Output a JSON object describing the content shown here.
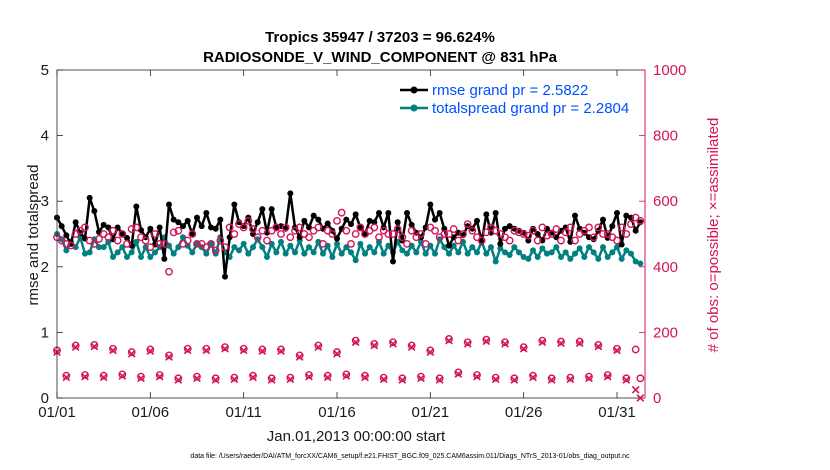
{
  "chart_data": {
    "type": "line",
    "title_line1": "Tropics 35947 / 37203 = 96.624%",
    "title_line2": "RADIOSONDE_V_WIND_COMPONENT @ 831 hPa",
    "xlabel": "Jan.01,2013 00:00:00 start",
    "ylabel_left": "rmse and totalspread",
    "ylabel_right": "# of obs: o=possible; ×=assimilated",
    "xlim": [
      0,
      31.5
    ],
    "ylim_left": [
      0,
      5
    ],
    "ylim_right": [
      0,
      1000
    ],
    "x_ticks": [
      0,
      5,
      10,
      15,
      20,
      25,
      30
    ],
    "x_tick_labels": [
      "01/01",
      "01/06",
      "01/11",
      "01/16",
      "01/21",
      "01/26",
      "01/31"
    ],
    "y_left_ticks": [
      0,
      1,
      2,
      3,
      4,
      5
    ],
    "y_left_tick_labels": [
      "0",
      "1",
      "2",
      "3",
      "4",
      "5"
    ],
    "y_right_ticks": [
      0,
      200,
      400,
      600,
      800,
      1000
    ],
    "y_right_tick_labels": [
      "0",
      "200",
      "400",
      "600",
      "800",
      "1000"
    ],
    "footer": "data file: /Users/raeder/DAI/ATM_forcXX/CAM6_setup/f.e21.FHIST_BGC.f09_025.CAM6assim.011/Diags_NTrS_2013-01/obs_diag_output.nc",
    "legend": {
      "placement": "top-right",
      "entries": [
        "rmse grand pr = 2.5822",
        "totalspread grand pr = 2.2804"
      ]
    },
    "colors": {
      "rmse": "#000000",
      "totalspread": "#008080",
      "obs": "#d4145a",
      "legend_text": "#0050ff"
    },
    "series": [
      {
        "name": "rmse",
        "axis": "left",
        "x": [
          0.0,
          0.25,
          0.5,
          0.75,
          1.0,
          1.25,
          1.5,
          1.75,
          2.0,
          2.25,
          2.5,
          2.75,
          3.0,
          3.25,
          3.5,
          3.75,
          4.0,
          4.25,
          4.5,
          4.75,
          5.0,
          5.25,
          5.5,
          5.75,
          6.0,
          6.25,
          6.5,
          6.75,
          7.0,
          7.25,
          7.5,
          7.75,
          8.0,
          8.25,
          8.5,
          8.75,
          9.0,
          9.25,
          9.5,
          9.75,
          10.0,
          10.25,
          10.5,
          10.75,
          11.0,
          11.25,
          11.5,
          11.75,
          12.0,
          12.25,
          12.5,
          12.75,
          13.0,
          13.25,
          13.5,
          13.75,
          14.0,
          14.25,
          14.5,
          14.75,
          15.0,
          15.25,
          15.5,
          15.75,
          16.0,
          16.25,
          16.5,
          16.75,
          17.0,
          17.25,
          17.5,
          17.75,
          18.0,
          18.25,
          18.5,
          18.75,
          19.0,
          19.25,
          19.5,
          19.75,
          20.0,
          20.25,
          20.5,
          20.75,
          21.0,
          21.25,
          21.5,
          21.75,
          22.0,
          22.25,
          22.5,
          22.75,
          23.0,
          23.25,
          23.5,
          23.75,
          24.0,
          24.25,
          24.5,
          24.75,
          25.0,
          25.25,
          25.5,
          25.75,
          26.0,
          26.25,
          26.5,
          26.75,
          27.0,
          27.25,
          27.5,
          27.75,
          28.0,
          28.25,
          28.5,
          28.75,
          29.0,
          29.25,
          29.5,
          29.75,
          30.0,
          30.25,
          30.5,
          30.75,
          31.0,
          31.25
        ],
        "values": [
          2.75,
          2.62,
          2.48,
          2.35,
          2.68,
          2.52,
          2.43,
          3.05,
          2.85,
          2.53,
          2.64,
          2.6,
          2.42,
          2.6,
          2.5,
          2.44,
          2.32,
          2.92,
          2.56,
          2.45,
          2.58,
          2.34,
          2.6,
          2.12,
          2.95,
          2.72,
          2.68,
          2.62,
          2.7,
          2.5,
          2.75,
          2.62,
          2.82,
          2.6,
          2.58,
          2.72,
          1.85,
          2.45,
          2.95,
          2.68,
          2.62,
          2.75,
          2.5,
          2.68,
          2.88,
          2.52,
          2.88,
          2.6,
          2.62,
          2.58,
          3.12,
          2.6,
          2.45,
          2.7,
          2.6,
          2.78,
          2.72,
          2.58,
          2.66,
          2.55,
          2.43,
          2.58,
          2.72,
          2.65,
          2.8,
          2.6,
          2.5,
          2.7,
          2.68,
          2.82,
          2.6,
          2.82,
          2.08,
          2.68,
          2.4,
          2.82,
          2.64,
          2.52,
          2.45,
          2.6,
          2.95,
          2.72,
          2.82,
          2.58,
          2.32,
          2.45,
          2.52,
          2.48,
          2.62,
          2.58,
          2.7,
          2.38,
          2.8,
          2.52,
          2.82,
          2.35,
          2.58,
          2.62,
          2.58,
          2.55,
          2.52,
          2.4,
          2.58,
          2.5,
          2.4,
          2.58,
          2.52,
          2.45,
          2.55,
          2.6,
          2.38,
          2.78,
          2.58,
          2.52,
          2.45,
          2.42,
          2.55,
          2.72,
          2.44,
          2.62,
          2.82,
          2.34,
          2.78,
          2.75,
          2.55,
          2.68
        ]
      },
      {
        "name": "totalspread",
        "axis": "left",
        "x": [
          0.0,
          0.25,
          0.5,
          0.75,
          1.0,
          1.25,
          1.5,
          1.75,
          2.0,
          2.25,
          2.5,
          2.75,
          3.0,
          3.25,
          3.5,
          3.75,
          4.0,
          4.25,
          4.5,
          4.75,
          5.0,
          5.25,
          5.5,
          5.75,
          6.0,
          6.25,
          6.5,
          6.75,
          7.0,
          7.25,
          7.5,
          7.75,
          8.0,
          8.25,
          8.5,
          8.75,
          9.0,
          9.25,
          9.5,
          9.75,
          10.0,
          10.25,
          10.5,
          10.75,
          11.0,
          11.25,
          11.5,
          11.75,
          12.0,
          12.25,
          12.5,
          12.75,
          13.0,
          13.25,
          13.5,
          13.75,
          14.0,
          14.25,
          14.5,
          14.75,
          15.0,
          15.25,
          15.5,
          15.75,
          16.0,
          16.25,
          16.5,
          16.75,
          17.0,
          17.25,
          17.5,
          17.75,
          18.0,
          18.25,
          18.5,
          18.75,
          19.0,
          19.25,
          19.5,
          19.75,
          20.0,
          20.25,
          20.5,
          20.75,
          21.0,
          21.25,
          21.5,
          21.75,
          22.0,
          22.25,
          22.5,
          22.75,
          23.0,
          23.25,
          23.5,
          23.75,
          24.0,
          24.25,
          24.5,
          24.75,
          25.0,
          25.25,
          25.5,
          25.75,
          26.0,
          26.25,
          26.5,
          26.75,
          27.0,
          27.25,
          27.5,
          27.75,
          28.0,
          28.25,
          28.5,
          28.75,
          29.0,
          29.25,
          29.5,
          29.75,
          30.0,
          30.25,
          30.5,
          30.75,
          31.0,
          31.25
        ],
        "values": [
          2.5,
          2.42,
          2.25,
          2.38,
          2.3,
          2.45,
          2.2,
          2.22,
          2.42,
          2.3,
          2.3,
          2.38,
          2.15,
          2.22,
          2.3,
          2.15,
          2.22,
          2.38,
          2.15,
          2.3,
          2.15,
          2.22,
          2.3,
          2.45,
          2.32,
          2.2,
          2.3,
          2.45,
          2.32,
          2.22,
          2.35,
          2.3,
          2.2,
          2.35,
          2.2,
          2.45,
          2.22,
          2.15,
          2.3,
          2.25,
          2.35,
          2.2,
          2.3,
          2.42,
          2.3,
          2.15,
          2.35,
          2.22,
          2.38,
          2.2,
          2.32,
          2.22,
          2.4,
          2.2,
          2.3,
          2.22,
          2.38,
          2.2,
          2.32,
          2.15,
          2.35,
          2.2,
          2.3,
          2.22,
          2.1,
          2.35,
          2.2,
          2.3,
          2.22,
          2.38,
          2.2,
          2.32,
          2.22,
          2.38,
          2.25,
          2.2,
          2.32,
          2.22,
          2.38,
          2.2,
          2.32,
          2.2,
          2.42,
          2.3,
          2.2,
          2.32,
          2.22,
          2.38,
          2.2,
          2.3,
          2.22,
          2.38,
          2.2,
          2.3,
          2.08,
          2.28,
          2.22,
          2.18,
          2.3,
          2.22,
          2.15,
          2.12,
          2.25,
          2.15,
          2.28,
          2.2,
          2.22,
          2.3,
          2.15,
          2.22,
          2.12,
          2.2,
          2.28,
          2.15,
          2.3,
          2.22,
          2.12,
          2.3,
          2.15,
          2.22,
          2.3,
          2.12,
          2.25,
          2.2,
          2.08,
          2.05
        ]
      },
      {
        "name": "obs_possible_rmse_times",
        "axis": "right",
        "marker": "o",
        "x": [
          0.0,
          0.25,
          0.5,
          0.75,
          1.0,
          1.25,
          1.5,
          1.75,
          2.0,
          2.25,
          2.5,
          2.75,
          3.0,
          3.25,
          3.5,
          3.75,
          4.0,
          4.25,
          4.5,
          4.75,
          5.0,
          5.25,
          5.5,
          5.75,
          6.0,
          6.25,
          6.5,
          6.75,
          7.0,
          7.25,
          7.5,
          7.75,
          8.0,
          8.25,
          8.5,
          8.75,
          9.0,
          9.25,
          9.5,
          9.75,
          10.0,
          10.25,
          10.5,
          10.75,
          11.0,
          11.25,
          11.5,
          11.75,
          12.0,
          12.25,
          12.5,
          12.75,
          13.0,
          13.25,
          13.5,
          13.75,
          14.0,
          14.25,
          14.5,
          14.75,
          15.0,
          15.25,
          15.5,
          15.75,
          16.0,
          16.25,
          16.5,
          16.75,
          17.0,
          17.25,
          17.5,
          17.75,
          18.0,
          18.25,
          18.5,
          18.75,
          19.0,
          19.25,
          19.5,
          19.75,
          20.0,
          20.25,
          20.5,
          20.75,
          21.0,
          21.25,
          21.5,
          21.75,
          22.0,
          22.25,
          22.5,
          22.75,
          23.0,
          23.25,
          23.5,
          23.75,
          24.0,
          24.25,
          24.5,
          24.75,
          25.0,
          25.25,
          25.5,
          25.75,
          26.0,
          26.25,
          26.5,
          26.75,
          27.0,
          27.25,
          27.5,
          27.75,
          28.0,
          28.25,
          28.5,
          28.75,
          29.0,
          29.25,
          29.5,
          29.75,
          30.0,
          30.25,
          30.5,
          30.75,
          31.0,
          31.25
        ],
        "values": [
          490,
          480,
          470,
          465,
          500,
          510,
          520,
          480,
          470,
          485,
          500,
          490,
          510,
          480,
          500,
          470,
          515,
          520,
          490,
          480,
          460,
          500,
          470,
          470,
          385,
          505,
          510,
          470,
          480,
          500,
          470,
          470,
          460,
          470,
          450,
          480,
          460,
          520,
          500,
          530,
          520,
          540,
          515,
          490,
          510,
          480,
          510,
          520,
          500,
          520,
          490,
          510,
          520,
          500,
          490,
          510,
          520,
          470,
          510,
          500,
          540,
          565,
          510,
          470,
          500,
          520,
          500,
          510,
          520,
          490,
          510,
          500,
          500,
          515,
          490,
          470,
          510,
          490,
          500,
          470,
          520,
          510,
          490,
          500,
          500,
          515,
          480,
          500,
          530,
          510,
          490,
          480,
          505,
          520,
          510,
          500,
          490,
          480,
          510,
          505,
          500,
          495,
          510,
          480,
          520,
          495,
          500,
          515,
          480,
          505,
          520,
          480,
          500,
          510,
          520,
          490,
          520,
          500,
          500,
          490,
          480,
          520,
          500,
          530,
          550,
          540
        ]
      },
      {
        "name": "obs_possible_lower",
        "axis": "right",
        "marker": "o",
        "x": [
          0.0,
          0.5,
          1.0,
          1.5,
          2.0,
          2.5,
          3.0,
          3.5,
          4.0,
          4.5,
          5.0,
          5.5,
          6.0,
          6.5,
          7.0,
          7.5,
          8.0,
          8.5,
          9.0,
          9.5,
          10.0,
          10.5,
          11.0,
          11.5,
          12.0,
          12.5,
          13.0,
          13.5,
          14.0,
          14.5,
          15.0,
          15.5,
          16.0,
          16.5,
          17.0,
          17.5,
          18.0,
          18.5,
          19.0,
          19.5,
          20.0,
          20.5,
          21.0,
          21.5,
          22.0,
          22.5,
          23.0,
          23.5,
          24.0,
          24.5,
          25.0,
          25.5,
          26.0,
          26.5,
          27.0,
          27.5,
          28.0,
          28.5,
          29.0,
          29.5,
          30.0,
          30.5,
          31.0,
          31.25
        ],
        "values": [
          145,
          68,
          160,
          70,
          162,
          68,
          150,
          72,
          140,
          65,
          148,
          70,
          130,
          60,
          150,
          65,
          150,
          60,
          155,
          62,
          150,
          68,
          148,
          60,
          148,
          62,
          130,
          70,
          160,
          68,
          140,
          72,
          175,
          68,
          165,
          62,
          170,
          60,
          160,
          65,
          145,
          60,
          180,
          78,
          170,
          70,
          178,
          62,
          170,
          60,
          155,
          68,
          175,
          60,
          172,
          62,
          172,
          65,
          162,
          70,
          150,
          60,
          148,
          60
        ]
      },
      {
        "name": "obs_assimilated_lower",
        "axis": "right",
        "marker": "x",
        "x": [
          0.0,
          0.5,
          1.0,
          1.5,
          2.0,
          2.5,
          3.0,
          3.5,
          4.0,
          4.5,
          5.0,
          5.5,
          6.0,
          6.5,
          7.0,
          7.5,
          8.0,
          8.5,
          9.0,
          9.5,
          10.0,
          10.5,
          11.0,
          11.5,
          12.0,
          12.5,
          13.0,
          13.5,
          14.0,
          14.5,
          15.0,
          15.5,
          16.0,
          16.5,
          17.0,
          17.5,
          18.0,
          18.5,
          19.0,
          19.5,
          20.0,
          20.5,
          21.0,
          21.5,
          22.0,
          22.5,
          23.0,
          23.5,
          24.0,
          24.5,
          25.0,
          25.5,
          26.0,
          26.5,
          27.0,
          27.5,
          28.0,
          28.5,
          29.0,
          29.5,
          30.0,
          30.5,
          31.0,
          31.25
        ],
        "values": [
          140,
          63,
          155,
          65,
          157,
          63,
          145,
          67,
          135,
          60,
          143,
          65,
          125,
          55,
          145,
          60,
          145,
          55,
          150,
          57,
          145,
          63,
          143,
          55,
          143,
          57,
          125,
          65,
          155,
          63,
          135,
          67,
          170,
          63,
          160,
          57,
          165,
          55,
          155,
          60,
          140,
          55,
          175,
          73,
          165,
          65,
          173,
          57,
          165,
          55,
          150,
          63,
          170,
          55,
          167,
          57,
          167,
          60,
          157,
          65,
          145,
          55,
          25,
          0
        ]
      }
    ]
  }
}
